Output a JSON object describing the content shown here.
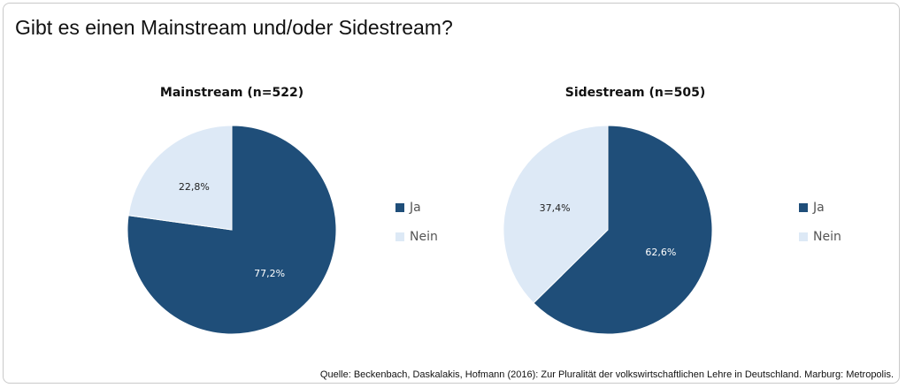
{
  "title": "Gibt es einen Mainstream und/oder Sidestream?",
  "source": "Quelle: Beckenbach, Daskalakis, Hofmann (2016): Zur Pluralität der volkswirtschaftlichen Lehre in Deutschland. Marburg: Metropolis.",
  "colors": {
    "ja": "#1f4e79",
    "nein": "#dde9f6"
  },
  "chart_data": [
    {
      "type": "pie",
      "title": "Mainstream (n=522)",
      "categories": [
        "Ja",
        "Nein"
      ],
      "values": [
        77.2,
        22.8
      ],
      "labels": [
        "77,2%",
        "22,8%"
      ],
      "legend": "right"
    },
    {
      "type": "pie",
      "title": "Sidestream (n=505)",
      "categories": [
        "Ja",
        "Nein"
      ],
      "values": [
        62.6,
        37.4
      ],
      "labels": [
        "62,6%",
        "37,4%"
      ],
      "legend": "right"
    }
  ]
}
